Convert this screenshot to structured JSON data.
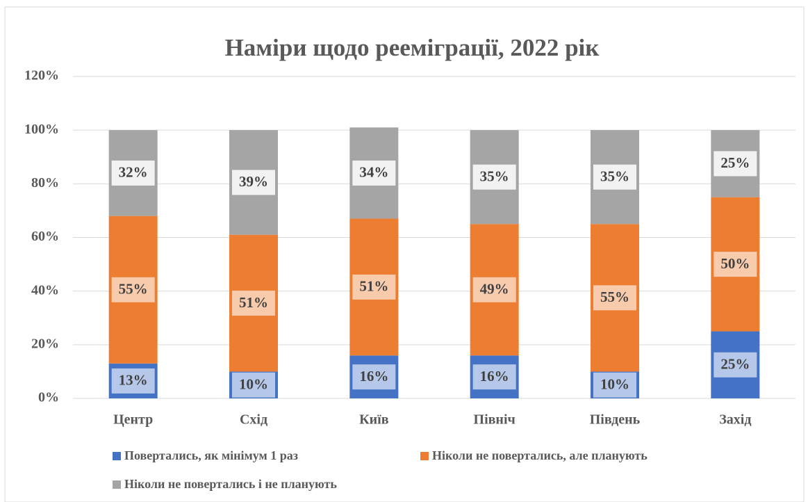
{
  "chart_data": {
    "type": "stacked_bar",
    "title": "Наміри щодо рееміграції, 2022 рік",
    "categories": [
      "Центр",
      "Схід",
      "Київ",
      "Північ",
      "Південь",
      "Захід"
    ],
    "series": [
      {
        "name": "Повертались, як мінімум 1 раз",
        "color": "#4472c4",
        "values": [
          13,
          10,
          16,
          16,
          10,
          25
        ],
        "value_labels": [
          "13%",
          "10%",
          "16%",
          "16%",
          "10%",
          "25%"
        ]
      },
      {
        "name": "Ніколи не повертались, але планують",
        "color": "#ed7d31",
        "values": [
          55,
          51,
          51,
          49,
          55,
          50
        ],
        "value_labels": [
          "55%",
          "51%",
          "51%",
          "49%",
          "55%",
          "50%"
        ]
      },
      {
        "name": "Ніколи не повертались і не планують",
        "color": "#a5a5a5",
        "values": [
          32,
          39,
          34,
          35,
          35,
          25
        ],
        "value_labels": [
          "32%",
          "39%",
          "34%",
          "35%",
          "35%",
          "25%"
        ]
      }
    ],
    "ylim": [
      0,
      120
    ],
    "yticks": [
      {
        "value": 0,
        "label": "0%"
      },
      {
        "value": 20,
        "label": "20%"
      },
      {
        "value": 40,
        "label": "40%"
      },
      {
        "value": 60,
        "label": "60%"
      },
      {
        "value": 80,
        "label": "80%"
      },
      {
        "value": 100,
        "label": "100%"
      },
      {
        "value": 120,
        "label": "120%"
      }
    ],
    "grid": true,
    "legend": "bottom"
  }
}
